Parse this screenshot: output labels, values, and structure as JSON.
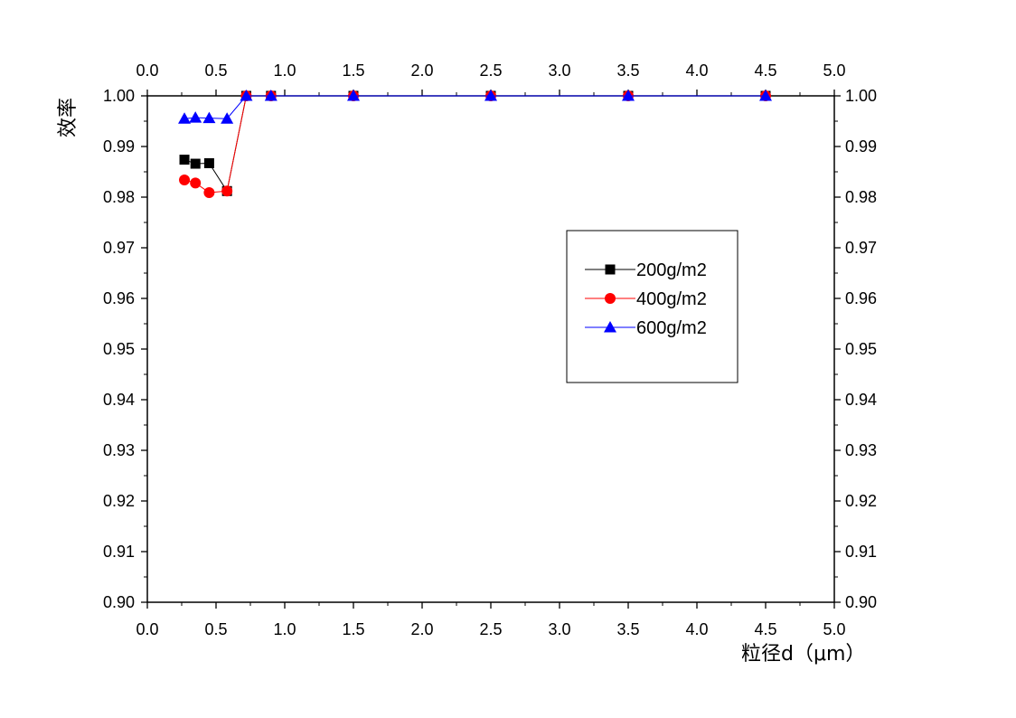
{
  "chart_data": {
    "type": "line",
    "xlabel": "粒径d（μm）",
    "ylabel": "效率",
    "xlim": [
      0.0,
      5.0
    ],
    "ylim": [
      0.9,
      1.0
    ],
    "x_ticks": [
      "0.0",
      "0.5",
      "1.0",
      "1.5",
      "2.0",
      "2.5",
      "3.0",
      "3.5",
      "4.0",
      "4.5",
      "5.0"
    ],
    "y_ticks": [
      "0.90",
      "0.91",
      "0.92",
      "0.93",
      "0.94",
      "0.95",
      "0.96",
      "0.97",
      "0.98",
      "0.99",
      "1.00"
    ],
    "mirror_axes": true,
    "grid": false,
    "legend_position": "right-center",
    "series": [
      {
        "name": "200g/m2",
        "color": "#000000",
        "marker": "square",
        "x": [
          0.27,
          0.35,
          0.45,
          0.58,
          0.72,
          0.9,
          1.5,
          2.5,
          3.5,
          4.5
        ],
        "y": [
          0.9874,
          0.9866,
          0.9867,
          0.9812,
          1.0,
          1.0,
          1.0,
          1.0,
          1.0,
          1.0
        ]
      },
      {
        "name": "400g/m2",
        "color": "#ff0000",
        "marker": "circle",
        "x": [
          0.27,
          0.35,
          0.45,
          0.58,
          0.72,
          0.9,
          1.5,
          2.5,
          3.5,
          4.5
        ],
        "y": [
          0.9834,
          0.9828,
          0.9809,
          0.9812,
          1.0,
          1.0,
          1.0,
          1.0,
          1.0,
          1.0
        ]
      },
      {
        "name": "600g/m2",
        "color": "#0000ff",
        "marker": "triangle",
        "x": [
          0.27,
          0.35,
          0.45,
          0.58,
          0.72,
          0.9,
          1.5,
          2.5,
          3.5,
          4.5
        ],
        "y": [
          0.9955,
          0.9957,
          0.9956,
          0.9955,
          1.0,
          1.0,
          1.0,
          1.0,
          1.0,
          1.0
        ]
      }
    ]
  }
}
